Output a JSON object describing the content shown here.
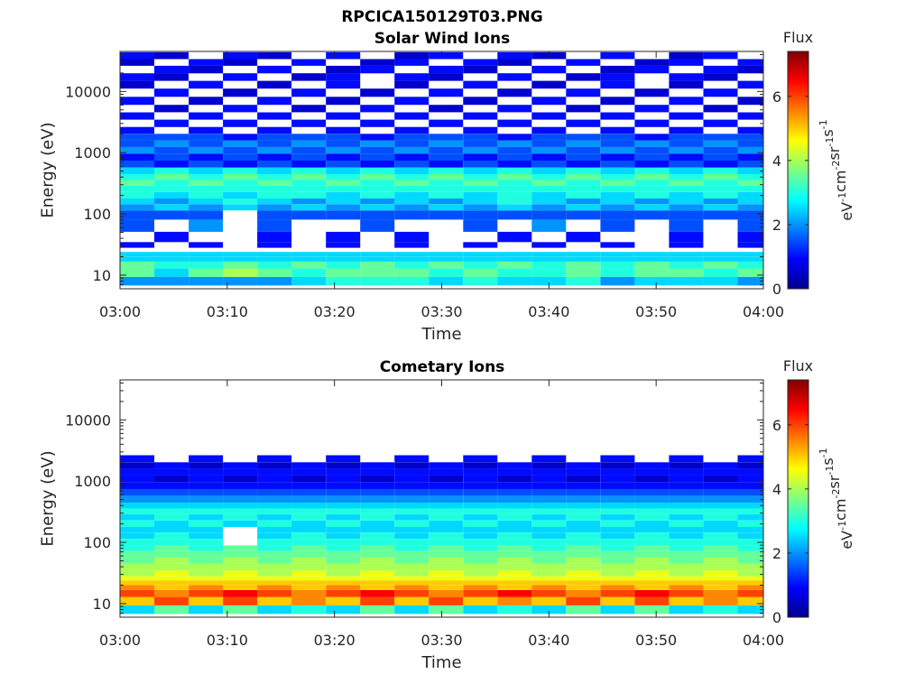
{
  "figure_title": "RPCICA150129T03.PNG",
  "colorbar": {
    "label": "Flux",
    "units_main": "eV",
    "units_rest": [
      "cm",
      "sr",
      "s"
    ],
    "units_sup": [
      "-1",
      "-2",
      "-1",
      "-1"
    ],
    "ticks": [
      "0",
      "2",
      "4",
      "6"
    ],
    "range": [
      0,
      7.4
    ],
    "colormap": "jet",
    "colors": [
      "#00008f",
      "#0000ff",
      "#00ffff",
      "#ffff00",
      "#ff0000",
      "#800000"
    ]
  },
  "chart_data": [
    {
      "type": "heatmap",
      "title": "Solar Wind Ions",
      "xlabel": "Time",
      "ylabel": "Energy (eV)",
      "x_ticks": [
        "03:00",
        "03:10",
        "03:20",
        "03:30",
        "03:40",
        "03:50",
        "04:00"
      ],
      "y_ticks": [
        "10",
        "100",
        "1000",
        "10000"
      ],
      "y_scale": "log",
      "ylim": [
        6,
        45000
      ],
      "xlim": [
        "03:00",
        "04:00"
      ],
      "clim": [
        0,
        7.4
      ],
      "time_start": "03:00",
      "time_step_s": 192,
      "energy_bands_eV": [
        8,
        11,
        15,
        18.5,
        22,
        26,
        30,
        40,
        65,
        100,
        130,
        160,
        200,
        260,
        320,
        400,
        500,
        650,
        850,
        1100,
        1400,
        1800,
        2300,
        3000,
        4000,
        5200,
        7000,
        9500,
        13000,
        17000,
        23000,
        30000,
        38000
      ],
      "flux": [
        [
          2.0,
          2.0,
          2.0,
          2.0,
          2.0,
          2.5,
          3.0,
          3.0,
          3.0,
          2.5,
          3.0,
          2.5,
          2.5,
          3.0,
          2.0,
          2.5,
          2.5,
          2.5,
          2.0
        ],
        [
          3.5,
          2.5,
          3.5,
          4.0,
          3.5,
          3.0,
          3.5,
          3.5,
          3.5,
          3.0,
          3.5,
          3.0,
          3.0,
          3.5,
          3.0,
          3.5,
          3.5,
          3.0,
          3.5
        ],
        [
          3.5,
          3.0,
          3.0,
          3.5,
          3.0,
          3.5,
          3.0,
          3.5,
          3.0,
          3.5,
          3.0,
          3.5,
          3.0,
          3.5,
          3.0,
          3.5,
          3.0,
          3.5,
          3.0
        ],
        [
          2.5,
          2.5,
          2.5,
          2.5,
          2.5,
          2.5,
          2.5,
          2.5,
          2.5,
          2.5,
          2.5,
          2.5,
          2.5,
          2.5,
          2.5,
          2.5,
          2.5,
          2.5,
          2.5
        ],
        [
          2.5,
          2.5,
          2.5,
          2.5,
          2.5,
          2.5,
          2.5,
          2.5,
          2.5,
          2.5,
          2.5,
          2.5,
          2.5,
          2.5,
          2.5,
          2.5,
          2.5,
          2.5,
          2.5
        ],
        [
          0,
          0,
          0,
          0,
          0,
          0,
          0,
          0,
          0,
          0,
          0,
          0,
          0,
          0,
          0,
          0,
          0,
          0,
          0
        ],
        [
          1,
          0,
          1,
          0,
          1,
          0,
          1,
          0,
          1,
          0,
          1,
          0,
          1,
          0,
          1,
          0,
          1,
          0,
          1
        ],
        [
          0,
          1,
          0,
          0,
          1,
          0,
          1,
          0,
          1,
          0,
          0,
          1,
          0,
          1,
          0,
          0,
          1,
          0,
          1
        ],
        [
          1.5,
          0,
          2,
          0,
          1.5,
          0,
          0,
          1.5,
          0,
          0,
          1.5,
          0,
          2,
          0,
          1.5,
          0,
          1.5,
          0,
          1.5
        ],
        [
          1.5,
          1.5,
          1.5,
          0,
          1.5,
          1.5,
          1.5,
          1.5,
          1.5,
          1.5,
          1.5,
          1.5,
          1.5,
          1.5,
          1.5,
          1.5,
          1.5,
          1.5,
          1.5
        ],
        [
          2,
          2.5,
          2,
          2.5,
          2,
          2.5,
          2,
          2.5,
          2,
          2.5,
          2,
          2.5,
          2,
          2.5,
          2,
          2.5,
          2,
          2.5,
          2
        ],
        [
          2.5,
          2,
          2.5,
          3,
          2.5,
          2,
          2.5,
          2,
          2.5,
          2,
          2.5,
          3,
          2.5,
          2,
          2.5,
          2,
          2.5,
          2,
          2.5
        ],
        [
          3,
          2.5,
          3,
          2.5,
          3,
          3,
          2.5,
          3,
          2.5,
          3,
          2.5,
          3,
          2.5,
          3,
          2.5,
          3,
          2.5,
          3,
          2.5
        ],
        [
          3,
          3,
          3,
          3,
          3,
          3,
          3,
          3,
          3,
          3,
          3,
          3,
          3,
          3,
          3,
          3,
          3,
          3,
          3
        ],
        [
          3.5,
          3,
          3.5,
          3,
          3.5,
          3,
          3.5,
          3,
          3.5,
          3,
          3.5,
          3,
          3.5,
          3,
          3.5,
          3,
          3.5,
          3,
          3.5
        ],
        [
          3,
          3.5,
          3,
          3.5,
          3,
          3.5,
          3,
          3.5,
          3,
          3.5,
          3,
          3.5,
          3,
          3.5,
          3,
          3.5,
          3,
          3.5,
          3
        ],
        [
          2.5,
          3,
          2.5,
          3,
          2.5,
          3,
          2.5,
          3,
          2.5,
          3,
          2.5,
          3,
          2.5,
          3,
          2.5,
          3,
          2.5,
          3,
          2.5
        ],
        [
          1.5,
          1,
          1.5,
          1,
          1.5,
          1,
          1.5,
          1,
          1.5,
          1,
          1.5,
          1,
          1.5,
          1,
          1.5,
          1,
          1.5,
          1,
          1.5
        ],
        [
          1,
          1.5,
          1,
          1.5,
          1,
          1.5,
          1,
          1.5,
          1,
          1.5,
          1,
          1.5,
          1,
          1.5,
          1,
          1.5,
          1,
          1.5,
          1
        ],
        [
          2,
          1.5,
          2,
          1.5,
          2,
          1.5,
          2,
          1.5,
          2,
          1.5,
          2,
          1.5,
          2,
          1.5,
          2,
          1.5,
          2,
          1.5,
          2
        ],
        [
          1.5,
          2,
          1.5,
          2,
          1.5,
          2,
          1.5,
          2,
          1.5,
          2,
          1.5,
          2,
          1.5,
          2,
          1.5,
          2,
          1.5,
          2,
          1.5
        ],
        [
          1.5,
          1.5,
          1.5,
          1,
          1.5,
          1.5,
          1.5,
          1,
          1.5,
          1.5,
          1.5,
          1,
          1.5,
          1.5,
          1.5,
          1,
          1.5,
          1.5,
          1.5
        ],
        [
          1,
          0,
          1,
          0,
          1,
          0,
          1,
          0,
          1,
          0,
          1,
          0,
          1,
          0,
          1,
          0,
          1,
          0,
          1
        ],
        [
          0,
          1,
          0,
          1,
          0,
          1,
          0,
          1,
          0,
          1,
          0,
          1,
          0,
          1,
          0,
          1,
          0,
          1,
          0
        ],
        [
          1,
          0,
          1,
          0,
          1,
          0,
          1,
          0,
          1,
          0,
          1,
          0,
          1,
          0,
          1,
          0,
          1,
          0,
          1
        ],
        [
          0,
          0.5,
          0,
          1,
          0,
          0.5,
          0,
          1,
          0,
          0.5,
          0,
          1,
          0,
          0.5,
          0,
          1,
          0,
          0.5,
          0
        ],
        [
          1,
          0,
          0.5,
          0,
          1,
          0,
          0.5,
          0,
          1,
          0,
          0.5,
          0,
          1,
          0,
          0.5,
          0,
          1,
          0,
          0.5
        ],
        [
          0,
          1,
          0,
          0.5,
          0,
          1,
          0,
          0.5,
          0,
          1,
          0,
          0.5,
          0,
          1,
          0,
          0.5,
          0,
          1,
          0
        ],
        [
          0.5,
          0,
          1,
          0,
          0.5,
          0,
          1,
          0,
          0.5,
          0,
          1,
          0,
          0.5,
          0,
          1,
          0,
          0.5,
          0,
          1
        ],
        [
          1,
          0.5,
          0,
          1,
          0,
          0.5,
          1,
          0,
          1,
          0.5,
          0,
          1,
          0,
          0.5,
          1,
          0,
          1,
          0.5,
          0
        ],
        [
          0,
          1,
          0.5,
          0,
          1,
          0,
          0.5,
          1,
          0,
          1,
          0.5,
          0,
          1,
          0,
          0.5,
          1,
          0,
          1,
          0.5
        ],
        [
          0.5,
          0,
          1,
          0.5,
          0,
          1,
          0,
          0.5,
          1,
          0,
          1,
          0.5,
          0,
          1,
          0,
          0.5,
          1,
          0,
          1
        ],
        [
          1,
          0.5,
          0,
          1,
          0.5,
          0,
          1,
          0,
          0.5,
          1,
          0,
          1,
          0.5,
          0,
          1,
          0,
          0.5,
          1,
          0
        ]
      ]
    },
    {
      "type": "heatmap",
      "title": "Cometary Ions",
      "xlabel": "Time",
      "ylabel": "Energy (eV)",
      "x_ticks": [
        "03:00",
        "03:10",
        "03:20",
        "03:30",
        "03:40",
        "03:50",
        "04:00"
      ],
      "y_ticks": [
        "10",
        "100",
        "1000",
        "10000"
      ],
      "y_scale": "log",
      "ylim": [
        6,
        45000
      ],
      "xlim": [
        "03:00",
        "04:00"
      ],
      "clim": [
        0,
        7.4
      ],
      "time_start": "03:00",
      "time_step_s": 192,
      "energy_bands_eV": [
        8,
        11,
        15,
        18.5,
        22,
        26,
        30,
        40,
        50,
        65,
        80,
        100,
        130,
        160,
        200,
        260,
        320,
        400,
        500,
        650,
        850,
        1100,
        1400,
        1800,
        2300
      ],
      "flux": [
        [
          2.5,
          3.5,
          2.5,
          3.5,
          2.5,
          3,
          2.5,
          3.5,
          2.5,
          3.5,
          2.5,
          3,
          2.5,
          3.5,
          2.5,
          3.5,
          2.5,
          3,
          2.5
        ],
        [
          5,
          6,
          5,
          6,
          5,
          5.5,
          5,
          6,
          5,
          6,
          5,
          5.5,
          5,
          6,
          5,
          6,
          5,
          5.5,
          5
        ],
        [
          6,
          5.5,
          6,
          6.5,
          6,
          5.5,
          6,
          6.5,
          6,
          5.5,
          6,
          6.5,
          6,
          5.5,
          6,
          6.5,
          6,
          5.5,
          6
        ],
        [
          5.5,
          5,
          5.5,
          5,
          5.5,
          5,
          5.5,
          5,
          5.5,
          5,
          5.5,
          5,
          5.5,
          5,
          5.5,
          5,
          5.5,
          5,
          5.5
        ],
        [
          5,
          5,
          5,
          5,
          5,
          5,
          5,
          5,
          5,
          5,
          5,
          5,
          5,
          5,
          5,
          5,
          5,
          5,
          5
        ],
        [
          4.5,
          4.5,
          4.5,
          4.5,
          4.5,
          4.5,
          4.5,
          4.5,
          4.5,
          4.5,
          4.5,
          4.5,
          4.5,
          4.5,
          4.5,
          4.5,
          4.5,
          4.5,
          4.5
        ],
        [
          4,
          4.5,
          4,
          4.5,
          4,
          4.5,
          4,
          4.5,
          4,
          4.5,
          4,
          4.5,
          4,
          4.5,
          4,
          4.5,
          4,
          4.5,
          4
        ],
        [
          4,
          4,
          4,
          4,
          4,
          4,
          4,
          4,
          4,
          4,
          4,
          4,
          4,
          4,
          4,
          4,
          4,
          4,
          4
        ],
        [
          3.5,
          4,
          3.5,
          4,
          3.5,
          4,
          3.5,
          4,
          3.5,
          4,
          3.5,
          4,
          3.5,
          4,
          3.5,
          4,
          3.5,
          4,
          3.5
        ],
        [
          3.5,
          3.5,
          3.5,
          3.5,
          3.5,
          3.5,
          3.5,
          3.5,
          3.5,
          3.5,
          3.5,
          3.5,
          3.5,
          3.5,
          3.5,
          3.5,
          3.5,
          3.5,
          3.5
        ],
        [
          3,
          3.5,
          3,
          3.5,
          3,
          3.5,
          3,
          3.5,
          3,
          3.5,
          3,
          3.5,
          3,
          3.5,
          3,
          3.5,
          3,
          3.5,
          3
        ],
        [
          3,
          3,
          3,
          0,
          3,
          3,
          3,
          3,
          3,
          3,
          3,
          3,
          3,
          3,
          3,
          3,
          3,
          3,
          3
        ],
        [
          2.5,
          3,
          2.5,
          0,
          2.5,
          3,
          2.5,
          3,
          2.5,
          3,
          2.5,
          3,
          2.5,
          3,
          2.5,
          3,
          2.5,
          3,
          2.5
        ],
        [
          2.5,
          2.5,
          2.5,
          0,
          2.5,
          2.5,
          2.5,
          2.5,
          2.5,
          2.5,
          2.5,
          2.5,
          2.5,
          2.5,
          2.5,
          2.5,
          2.5,
          2.5,
          2.5
        ],
        [
          3,
          2.5,
          3,
          2.5,
          3,
          2.5,
          3,
          2.5,
          3,
          2.5,
          3,
          2.5,
          3,
          2.5,
          3,
          2.5,
          3,
          2.5,
          3
        ],
        [
          2.5,
          3,
          2.5,
          3,
          2.5,
          3,
          2.5,
          3,
          2.5,
          3,
          2.5,
          3,
          2.5,
          3,
          2.5,
          3,
          2.5,
          3,
          2.5
        ],
        [
          3,
          3,
          3,
          3,
          3,
          3,
          3,
          3,
          3,
          3,
          3,
          3,
          3,
          3,
          3,
          3,
          3,
          3,
          3
        ],
        [
          2.5,
          2.5,
          2.5,
          2.5,
          2.5,
          2.5,
          2.5,
          2.5,
          2.5,
          2.5,
          2.5,
          2.5,
          2.5,
          2.5,
          2.5,
          2.5,
          2.5,
          2.5,
          2.5
        ],
        [
          2,
          2,
          2,
          2,
          2,
          2,
          2,
          2,
          2,
          2,
          2,
          2,
          2,
          2,
          2,
          2,
          2,
          2,
          2
        ],
        [
          1.5,
          1.5,
          1.5,
          1.5,
          1.5,
          1.5,
          1.5,
          1.5,
          1.5,
          1.5,
          1.5,
          1.5,
          1.5,
          1.5,
          1.5,
          1.5,
          1.5,
          1.5,
          1.5
        ],
        [
          1,
          1,
          1,
          1,
          1,
          1,
          1,
          1,
          1,
          1,
          1,
          1,
          1,
          1,
          1,
          1,
          1,
          1,
          1
        ],
        [
          1,
          0.5,
          1,
          0.5,
          1,
          0.5,
          1,
          0.5,
          1,
          0.5,
          1,
          0.5,
          1,
          0.5,
          1,
          0.5,
          1,
          0.5,
          1
        ],
        [
          1,
          1,
          1,
          1,
          1,
          1,
          1,
          1,
          1,
          1,
          1,
          1,
          1,
          1,
          1,
          1,
          1,
          1,
          1
        ],
        [
          0.5,
          1,
          0.5,
          1,
          0.5,
          1,
          0.5,
          1,
          0.5,
          1,
          0.5,
          1,
          0.5,
          1,
          0.5,
          1,
          0.5,
          1,
          0.5
        ],
        [
          1,
          0,
          1,
          0,
          1,
          0,
          1,
          0,
          1,
          0,
          1,
          0,
          1,
          0,
          1,
          0,
          1,
          0,
          1
        ]
      ]
    }
  ]
}
